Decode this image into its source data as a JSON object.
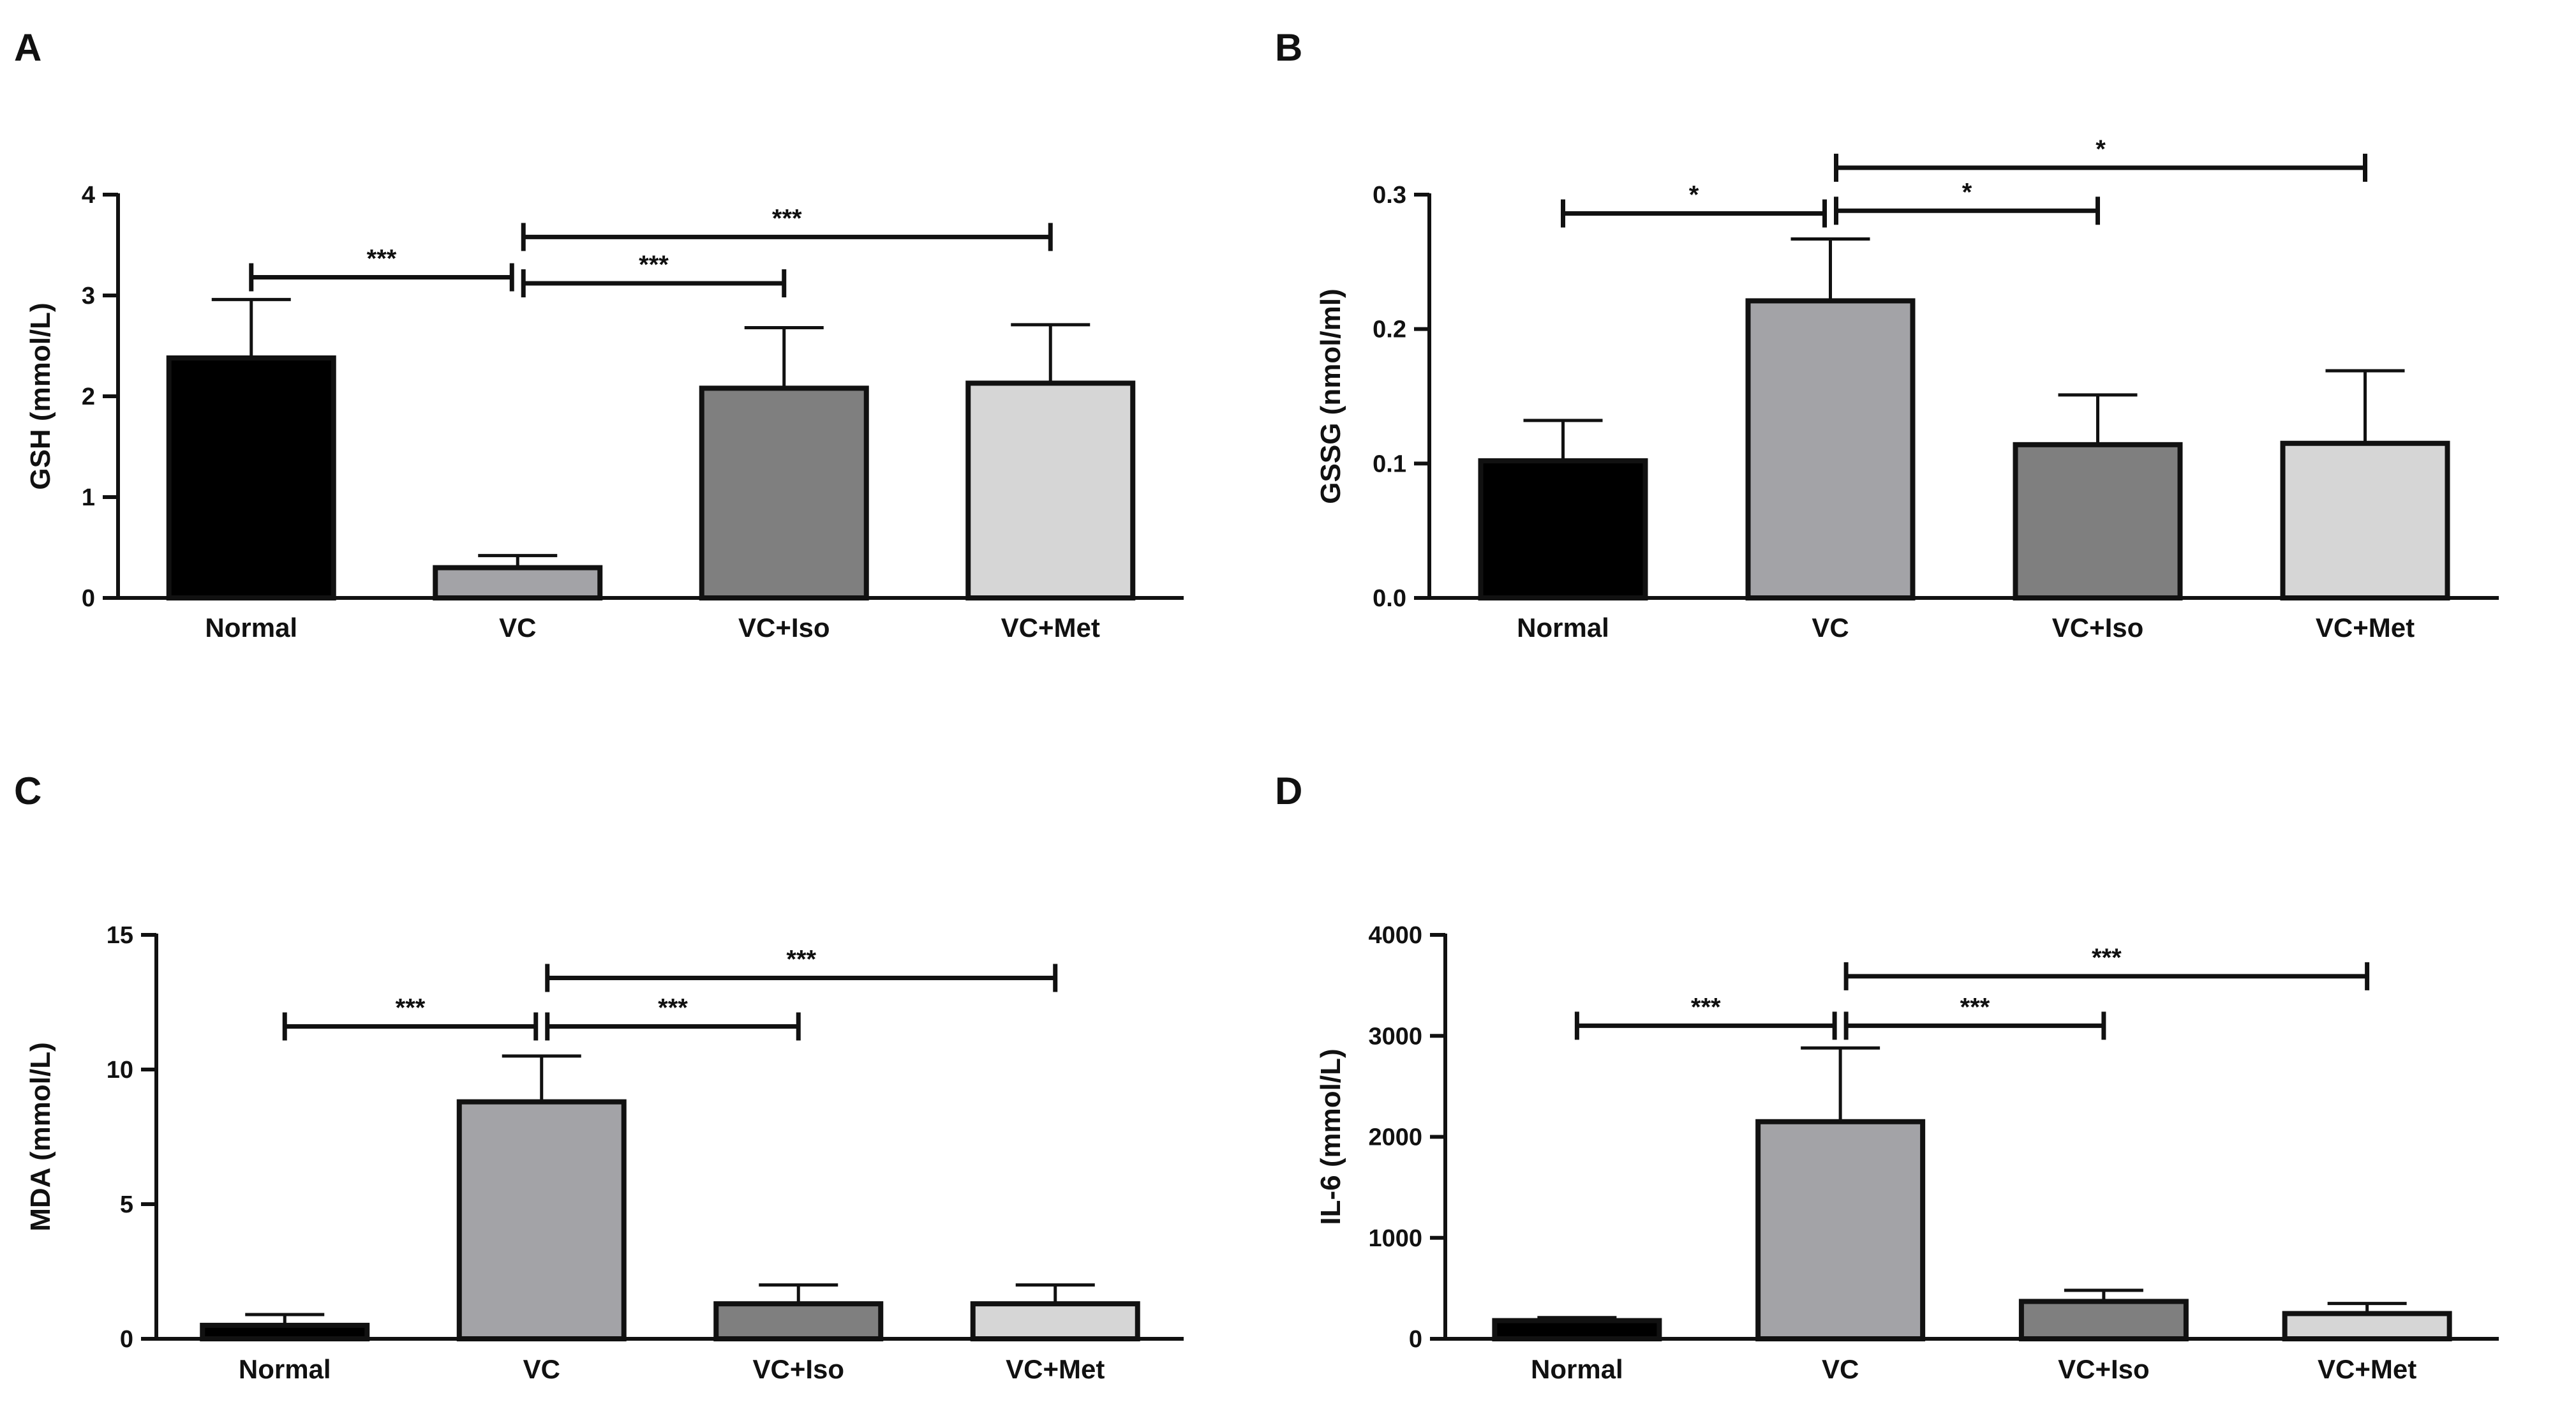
{
  "colors": {
    "bar_colors": [
      "#000000",
      "#a3a3a7",
      "#7f7f7f",
      "#d6d6d6"
    ],
    "axis": "#111111",
    "text": "#111111"
  },
  "chart_data": [
    {
      "panel": "A",
      "type": "bar",
      "categories": [
        "Normal",
        "VC",
        "VC+Iso",
        "VC+Met"
      ],
      "values": [
        2.38,
        0.3,
        2.08,
        2.13
      ],
      "errors": [
        0.58,
        0.12,
        0.6,
        0.58
      ],
      "ylabel": "GSH (mmol/L)",
      "ylim": [
        0,
        4
      ],
      "yticks": [
        0,
        1,
        2,
        3,
        4
      ],
      "ytick_labels": [
        "0",
        "1",
        "2",
        "3",
        "4"
      ],
      "significance": [
        {
          "from": 0,
          "to": 1,
          "y": 3.18,
          "label": "***"
        },
        {
          "from": 1,
          "to": 2,
          "y": 3.12,
          "label": "***"
        },
        {
          "from": 1,
          "to": 3,
          "y": 3.58,
          "label": "***"
        }
      ]
    },
    {
      "panel": "B",
      "type": "bar",
      "categories": [
        "Normal",
        "VC",
        "VC+Iso",
        "VC+Met"
      ],
      "values": [
        0.102,
        0.221,
        0.114,
        0.115
      ],
      "errors": [
        0.03,
        0.046,
        0.037,
        0.054
      ],
      "ylabel": "GSSG (nmol/ml)",
      "ylim": [
        0,
        0.3
      ],
      "yticks": [
        0,
        0.1,
        0.2,
        0.3
      ],
      "ytick_labels": [
        "0.0",
        "0.1",
        "0.2",
        "0.3"
      ],
      "significance": [
        {
          "from": 0,
          "to": 1,
          "y": 0.286,
          "label": "*"
        },
        {
          "from": 1,
          "to": 2,
          "y": 0.288,
          "label": "*"
        },
        {
          "from": 1,
          "to": 3,
          "y": 0.32,
          "label": "*"
        }
      ]
    },
    {
      "panel": "C",
      "type": "bar",
      "categories": [
        "Normal",
        "VC",
        "VC+Iso",
        "VC+Met"
      ],
      "values": [
        0.5,
        8.8,
        1.3,
        1.3
      ],
      "errors": [
        0.4,
        1.7,
        0.7,
        0.7
      ],
      "ylabel": "MDA (mmol/L)",
      "ylim": [
        0,
        15
      ],
      "yticks": [
        0,
        5,
        10,
        15
      ],
      "ytick_labels": [
        "0",
        "5",
        "10",
        "15"
      ],
      "significance": [
        {
          "from": 0,
          "to": 1,
          "y": 11.6,
          "label": "***"
        },
        {
          "from": 1,
          "to": 2,
          "y": 11.6,
          "label": "***"
        },
        {
          "from": 1,
          "to": 3,
          "y": 13.4,
          "label": "***"
        }
      ]
    },
    {
      "panel": "D",
      "type": "bar",
      "categories": [
        "Normal",
        "VC",
        "VC+Iso",
        "VC+Met"
      ],
      "values": [
        180,
        2150,
        370,
        250
      ],
      "errors": [
        30,
        730,
        110,
        100
      ],
      "ylabel": "IL-6 (mmol/L)",
      "ylim": [
        0,
        4000
      ],
      "yticks": [
        0,
        1000,
        2000,
        3000,
        4000
      ],
      "ytick_labels": [
        "0",
        "1000",
        "2000",
        "3000",
        "4000"
      ],
      "significance": [
        {
          "from": 0,
          "to": 1,
          "y": 3100,
          "label": "***"
        },
        {
          "from": 1,
          "to": 2,
          "y": 3100,
          "label": "***"
        },
        {
          "from": 1,
          "to": 3,
          "y": 3590,
          "label": "***"
        }
      ]
    }
  ]
}
